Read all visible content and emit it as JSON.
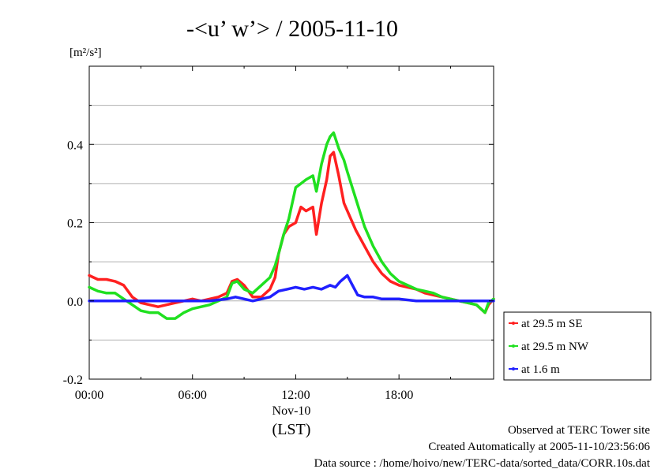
{
  "chart_data": {
    "type": "line",
    "title": "-<u’ w’> / 2005-11-10",
    "ylabel_unit": "[m²/s²]",
    "x_ticks": [
      "00:00",
      "06:00",
      "12:00",
      "18:00"
    ],
    "x_tick_hours": [
      0,
      6,
      12,
      18
    ],
    "x_sublabel": "Nov-10",
    "x_zone_label": "(LST)",
    "xlim": [
      0,
      23.5
    ],
    "ylim": [
      -0.2,
      0.6
    ],
    "y_ticks": [
      "-0.2",
      "0.0",
      "0.2",
      "0.4"
    ],
    "y_tick_values": [
      -0.2,
      0.0,
      0.2,
      0.4
    ],
    "grid": true,
    "legend_position": "right",
    "series": [
      {
        "name": "at 29.5 m SE",
        "color": "#ff2020",
        "x": [
          0,
          0.5,
          1,
          1.5,
          2,
          2.5,
          3,
          3.5,
          4,
          4.5,
          5,
          5.5,
          6,
          6.5,
          7,
          7.5,
          8,
          8.3,
          8.6,
          9,
          9.5,
          10,
          10.5,
          10.8,
          11,
          11.3,
          11.6,
          12,
          12.3,
          12.6,
          13,
          13.2,
          13.5,
          13.8,
          14,
          14.2,
          14.5,
          14.8,
          15,
          15.5,
          16,
          16.5,
          17,
          17.5,
          18,
          18.5,
          19,
          19.5,
          20,
          20.5,
          21,
          21.5,
          22,
          22.5,
          23,
          23.2,
          23.5
        ],
        "y": [
          0.065,
          0.055,
          0.055,
          0.05,
          0.04,
          0.01,
          -0.005,
          -0.01,
          -0.015,
          -0.01,
          -0.005,
          0.0,
          0.005,
          0.0,
          0.005,
          0.01,
          0.02,
          0.05,
          0.055,
          0.04,
          0.01,
          0.01,
          0.03,
          0.06,
          0.12,
          0.17,
          0.19,
          0.2,
          0.24,
          0.23,
          0.24,
          0.17,
          0.25,
          0.31,
          0.37,
          0.38,
          0.32,
          0.25,
          0.23,
          0.18,
          0.14,
          0.1,
          0.07,
          0.05,
          0.04,
          0.035,
          0.03,
          0.02,
          0.015,
          0.01,
          0.005,
          0.0,
          -0.005,
          -0.01,
          -0.03,
          -0.01,
          0.005
        ]
      },
      {
        "name": "at 29.5 m NW",
        "color": "#20e020",
        "x": [
          0,
          0.5,
          1,
          1.5,
          2,
          2.5,
          3,
          3.5,
          4,
          4.5,
          5,
          5.5,
          6,
          6.5,
          7,
          7.5,
          8,
          8.3,
          8.6,
          9,
          9.5,
          10,
          10.5,
          10.8,
          11,
          11.3,
          11.6,
          12,
          12.3,
          12.6,
          13,
          13.2,
          13.5,
          13.8,
          14,
          14.2,
          14.5,
          14.8,
          15,
          15.5,
          16,
          16.5,
          17,
          17.5,
          18,
          18.5,
          19,
          19.5,
          20,
          20.5,
          21,
          21.5,
          22,
          22.5,
          23,
          23.2,
          23.5
        ],
        "y": [
          0.035,
          0.025,
          0.02,
          0.02,
          0.005,
          -0.01,
          -0.025,
          -0.03,
          -0.03,
          -0.045,
          -0.045,
          -0.03,
          -0.02,
          -0.015,
          -0.01,
          0.0,
          0.01,
          0.045,
          0.05,
          0.03,
          0.02,
          0.04,
          0.06,
          0.09,
          0.12,
          0.17,
          0.21,
          0.29,
          0.3,
          0.31,
          0.32,
          0.28,
          0.35,
          0.4,
          0.42,
          0.43,
          0.39,
          0.36,
          0.33,
          0.26,
          0.19,
          0.14,
          0.1,
          0.07,
          0.05,
          0.04,
          0.03,
          0.025,
          0.02,
          0.01,
          0.005,
          0.0,
          -0.005,
          -0.01,
          -0.03,
          -0.005,
          0.005
        ]
      },
      {
        "name": "at 1.6 m",
        "color": "#2020ff",
        "x": [
          0,
          1,
          2,
          3,
          4,
          5,
          6,
          7,
          8,
          8.5,
          9,
          9.5,
          10,
          10.5,
          11,
          11.5,
          12,
          12.5,
          13,
          13.5,
          14,
          14.3,
          14.6,
          15,
          15.3,
          15.6,
          16,
          16.5,
          17,
          18,
          19,
          20,
          21,
          22,
          23,
          23.5
        ],
        "y": [
          0.0,
          0.0,
          0.0,
          0.0,
          0.0,
          0.0,
          0.0,
          0.0,
          0.005,
          0.01,
          0.005,
          0.0,
          0.005,
          0.01,
          0.025,
          0.03,
          0.035,
          0.03,
          0.035,
          0.03,
          0.04,
          0.035,
          0.05,
          0.065,
          0.04,
          0.015,
          0.01,
          0.01,
          0.005,
          0.005,
          0.0,
          0.0,
          0.0,
          0.0,
          0.0,
          0.0
        ]
      }
    ]
  },
  "footer": {
    "line1": "Observed at TERC Tower site",
    "line2": "Created Automatically at 2005-11-10/23:56:06",
    "line3": "Data source : /home/hoivo/new/TERC-data/sorted_data/CORR.10s.dat"
  }
}
